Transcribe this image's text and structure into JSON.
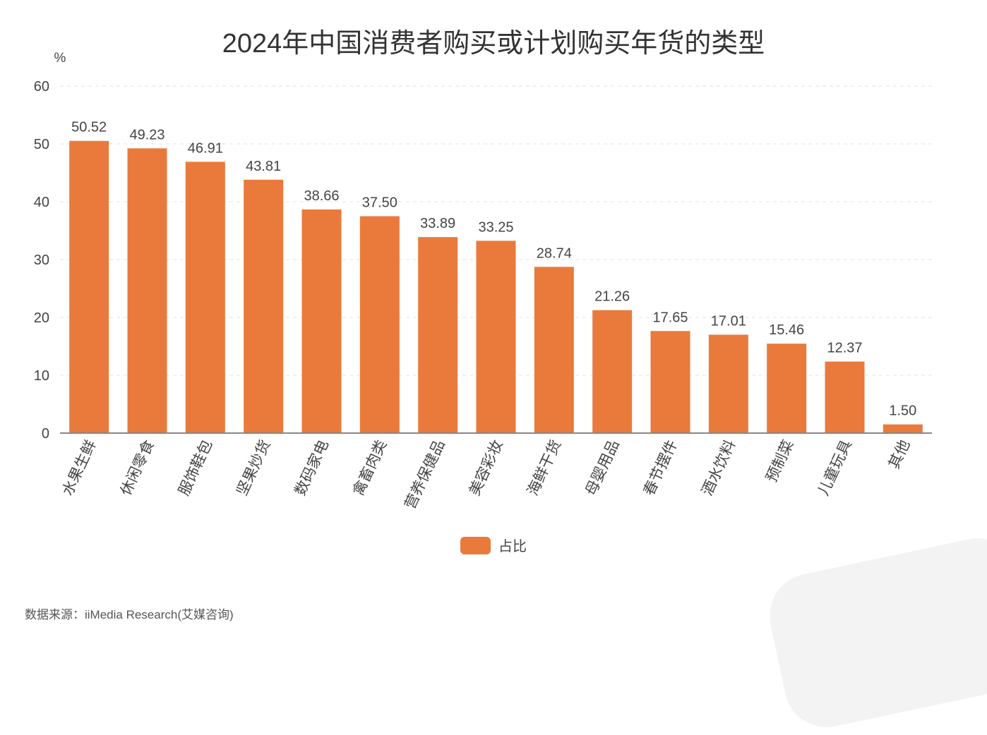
{
  "chart_data": {
    "type": "bar",
    "title": "2024年中国消费者购买或计划购买年货的类型",
    "ylabel": "%",
    "xlabel": "",
    "ylim": [
      0,
      60
    ],
    "yticks": [
      0,
      10,
      20,
      30,
      40,
      50,
      60
    ],
    "grid": true,
    "legend_position": "bottom",
    "categories": [
      "水果生鲜",
      "休闲零食",
      "服饰鞋包",
      "坚果炒货",
      "数码家电",
      "禽畜肉类",
      "营养保健品",
      "美容彩妆",
      "海鲜干货",
      "母婴用品",
      "春节摆件",
      "酒水饮料",
      "预制菜",
      "儿童玩具",
      "其他"
    ],
    "series": [
      {
        "name": "占比",
        "color": "#ea7a3c",
        "values": [
          50.52,
          49.23,
          46.91,
          43.81,
          38.66,
          37.5,
          33.89,
          33.25,
          28.74,
          21.26,
          17.65,
          17.01,
          15.46,
          12.37,
          1.5
        ],
        "labels": [
          "50.52",
          "49.23",
          "46.91",
          "43.81",
          "38.66",
          "37.50",
          "33.89",
          "33.25",
          "28.74",
          "21.26",
          "17.65",
          "17.01",
          "15.46",
          "12.37",
          "1.50"
        ]
      }
    ]
  },
  "source": "数据来源：iiMedia Research(艾媒咨询)"
}
